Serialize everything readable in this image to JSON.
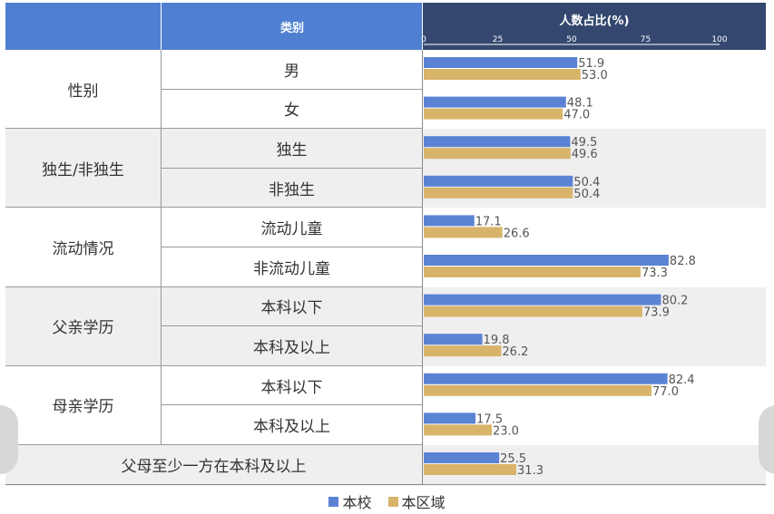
{
  "table_header": {
    "category": "类别",
    "chart": "人数占比(%)"
  },
  "chart_data": {
    "type": "bar",
    "orientation": "horizontal",
    "xlim": [
      0,
      100
    ],
    "xticks": [
      0,
      25,
      50,
      75,
      100
    ],
    "groups": [
      {
        "label": "性别",
        "rows": [
          "男",
          "女"
        ]
      },
      {
        "label": "独生/非独生",
        "rows": [
          "独生",
          "非独生"
        ]
      },
      {
        "label": "流动情况",
        "rows": [
          "流动儿童",
          "非流动儿童"
        ]
      },
      {
        "label": "父亲学历",
        "rows": [
          "本科以下",
          "本科及以上"
        ]
      },
      {
        "label": "母亲学历",
        "rows": [
          "本科以下",
          "本科及以上"
        ]
      },
      {
        "label": "父母至少一方在本科及以上",
        "rows": []
      }
    ],
    "categories": [
      "男",
      "女",
      "独生",
      "非独生",
      "流动儿童",
      "非流动儿童",
      "本科以下",
      "本科及以上",
      "本科以下",
      "本科及以上",
      "父母至少一方在本科及以上"
    ],
    "series": [
      {
        "name": "本校",
        "color": "#5b83d4",
        "values": [
          51.9,
          48.1,
          49.5,
          50.4,
          17.1,
          82.8,
          80.2,
          19.8,
          82.4,
          17.5,
          25.5
        ]
      },
      {
        "name": "本区域",
        "color": "#d8b46a",
        "values": [
          53.0,
          47.0,
          49.6,
          50.4,
          26.6,
          73.3,
          73.9,
          26.2,
          77.0,
          23.0,
          31.3
        ]
      }
    ],
    "legend_position": "bottom"
  }
}
